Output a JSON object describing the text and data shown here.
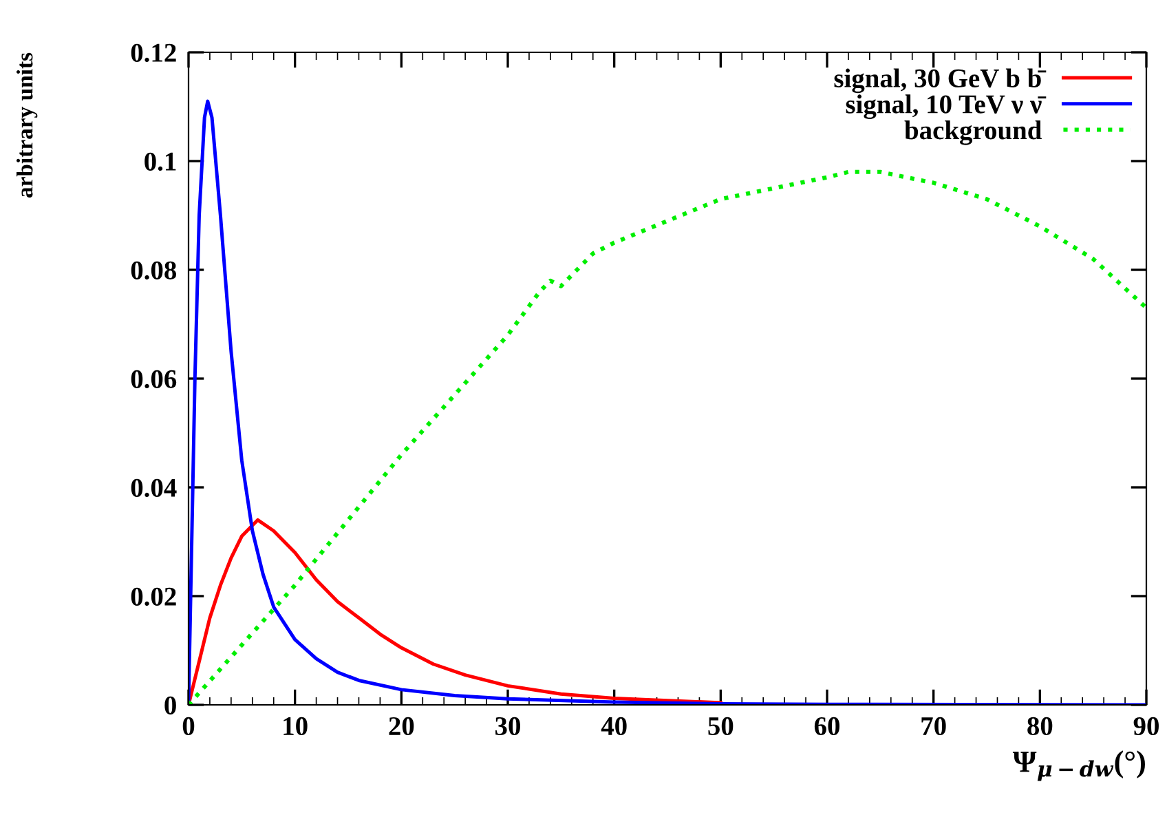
{
  "chart_data": {
    "type": "line",
    "xlabel": "Ψ$_{μ−dw}$(°)",
    "ylabel": "arbitrary units",
    "xlim": [
      0,
      90
    ],
    "xticks": [
      0,
      10,
      20,
      30,
      40,
      50,
      60,
      70,
      80,
      90
    ],
    "ylim": [
      0,
      0.12
    ],
    "yticks": [
      0,
      0.02,
      0.04,
      0.06,
      0.08,
      0.1,
      0.12
    ],
    "grid": false,
    "legend": "top right",
    "series": [
      {
        "name": "signal, 30 GeV b b̄",
        "color": "#ff0000",
        "line_style": "solid",
        "x": [
          0,
          1,
          2,
          3,
          4,
          5,
          6,
          6.5,
          8,
          10,
          12,
          14,
          16,
          18,
          20,
          23,
          26,
          30,
          35,
          40,
          50
        ],
        "values": [
          0,
          0.008,
          0.016,
          0.022,
          0.027,
          0.031,
          0.033,
          0.034,
          0.032,
          0.028,
          0.023,
          0.019,
          0.016,
          0.013,
          0.0105,
          0.0075,
          0.0055,
          0.0035,
          0.002,
          0.0012,
          0.0004
        ]
      },
      {
        "name": "signal, 10 TeV ν ν̄",
        "color": "#0000ff",
        "line_style": "solid",
        "x": [
          0,
          0.3,
          0.6,
          1,
          1.5,
          1.8,
          2.2,
          3,
          4,
          5,
          6,
          7,
          8,
          10,
          12,
          14,
          16,
          20,
          25,
          30,
          40,
          50,
          60,
          90
        ],
        "values": [
          0,
          0.03,
          0.06,
          0.09,
          0.108,
          0.111,
          0.108,
          0.09,
          0.065,
          0.045,
          0.032,
          0.024,
          0.018,
          0.012,
          0.0085,
          0.006,
          0.0045,
          0.0028,
          0.0017,
          0.0011,
          0.0005,
          0.0002,
          0.0001,
          0
        ]
      },
      {
        "name": "background",
        "color": "#00ee00",
        "line_style": "dotted",
        "x": [
          0,
          5,
          10,
          15,
          20,
          25,
          30,
          33,
          34,
          35,
          36,
          38,
          40,
          45,
          50,
          55,
          60,
          62,
          65,
          70,
          75,
          80,
          85,
          90
        ],
        "values": [
          0,
          0.011,
          0.022,
          0.034,
          0.046,
          0.057,
          0.068,
          0.076,
          0.078,
          0.077,
          0.079,
          0.083,
          0.085,
          0.089,
          0.093,
          0.095,
          0.097,
          0.098,
          0.098,
          0.096,
          0.093,
          0.088,
          0.082,
          0.073
        ]
      }
    ]
  }
}
